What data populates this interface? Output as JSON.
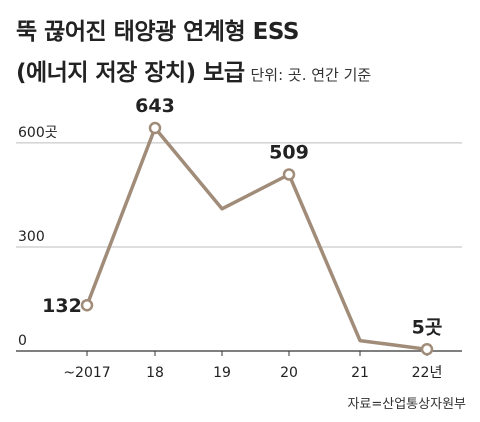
{
  "header": {
    "title_line1": "뚝 끊어진 태양광 연계형 ESS",
    "title_line2": "(에너지 저장 장치) 보급",
    "unit": "단위: 곳. 연간 기준"
  },
  "source": "자료=산업통상자원부",
  "colors": {
    "line": "#a08c78",
    "marker_fill": "#ffffff",
    "grid": "#bdbdbd",
    "text": "#222222"
  },
  "chart_data": {
    "type": "line",
    "categories": [
      "~2017",
      "18",
      "19",
      "20",
      "21",
      "22년"
    ],
    "values": [
      132,
      643,
      410,
      509,
      30,
      5
    ],
    "y_ticks": [
      {
        "value": 600,
        "label": "600곳"
      },
      {
        "value": 300,
        "label": "300"
      },
      {
        "value": 0,
        "label": "0"
      }
    ],
    "data_labels": [
      {
        "index": 0,
        "label": "132"
      },
      {
        "index": 1,
        "label": "643"
      },
      {
        "index": 3,
        "label": "509"
      },
      {
        "index": 5,
        "label": "5곳"
      }
    ],
    "marker_indices": [
      0,
      1,
      3,
      5
    ],
    "ylim": [
      0,
      643
    ],
    "grid": true
  }
}
